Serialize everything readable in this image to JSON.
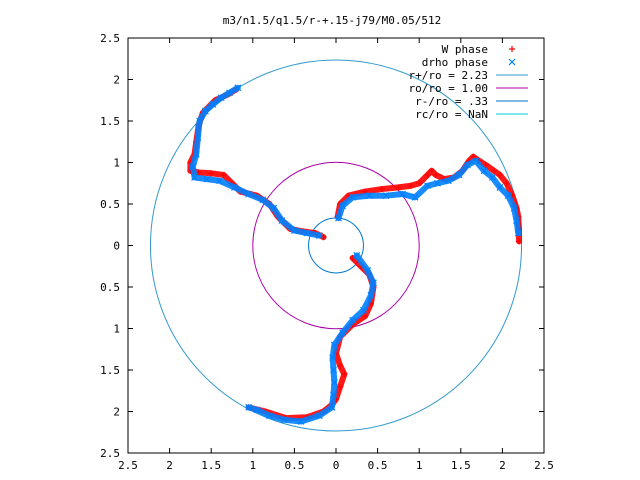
{
  "chart_data": {
    "type": "scatter",
    "title": "m3/n1.5/q1.5/r-+.15-j79/M0.05/512",
    "xlabel": "",
    "ylabel": "",
    "xlim": [
      -2.5,
      2.5
    ],
    "ylim": [
      -2.5,
      2.5
    ],
    "x_ticks": [
      -2.5,
      -2,
      -1.5,
      -1,
      -0.5,
      0,
      0.5,
      1,
      1.5,
      2,
      2.5
    ],
    "x_tick_labels": [
      "2.5",
      "2",
      "1.5",
      "1",
      "0.5",
      "0",
      "0.5",
      "1",
      "1.5",
      "2",
      "2.5"
    ],
    "y_ticks": [
      2.5,
      2,
      1.5,
      1,
      0.5,
      0,
      -0.5,
      -1,
      -1.5,
      -2,
      -2.5
    ],
    "y_tick_labels": [
      "2.5",
      "2",
      "1.5",
      "1",
      "0.5",
      "0",
      "0.5",
      "1",
      "1.5",
      "2",
      "2.5"
    ],
    "grid": false,
    "legend_position": "top-right",
    "series": [
      {
        "name": "W phase",
        "marker": "plus",
        "color": "#ff0000",
        "points": [
          [
            0.02,
            0.35
          ],
          [
            0.05,
            0.5
          ],
          [
            0.15,
            0.6
          ],
          [
            0.35,
            0.65
          ],
          [
            0.55,
            0.68
          ],
          [
            0.75,
            0.7
          ],
          [
            0.9,
            0.72
          ],
          [
            1.0,
            0.75
          ],
          [
            1.1,
            0.85
          ],
          [
            1.15,
            0.9
          ],
          [
            1.2,
            0.85
          ],
          [
            1.3,
            0.8
          ],
          [
            1.42,
            0.82
          ],
          [
            1.52,
            0.9
          ],
          [
            1.6,
            1.02
          ],
          [
            1.65,
            1.07
          ],
          [
            1.72,
            1.02
          ],
          [
            1.8,
            0.97
          ],
          [
            1.9,
            0.9
          ],
          [
            1.97,
            0.85
          ],
          [
            2.05,
            0.75
          ],
          [
            2.12,
            0.6
          ],
          [
            2.17,
            0.45
          ],
          [
            2.19,
            0.35
          ],
          [
            2.2,
            0.2
          ],
          [
            2.2,
            0.05
          ],
          [
            -0.15,
            0.1
          ],
          [
            -0.25,
            0.15
          ],
          [
            -0.4,
            0.17
          ],
          [
            -0.55,
            0.2
          ],
          [
            -0.7,
            0.35
          ],
          [
            -0.8,
            0.5
          ],
          [
            -0.95,
            0.6
          ],
          [
            -1.15,
            0.65
          ],
          [
            -1.25,
            0.75
          ],
          [
            -1.35,
            0.85
          ],
          [
            -1.5,
            0.87
          ],
          [
            -1.65,
            0.88
          ],
          [
            -1.75,
            0.9
          ],
          [
            -1.75,
            1.0
          ],
          [
            -1.7,
            1.1
          ],
          [
            -1.68,
            1.25
          ],
          [
            -1.65,
            1.45
          ],
          [
            -1.6,
            1.6
          ],
          [
            -1.45,
            1.75
          ],
          [
            -1.3,
            1.82
          ],
          [
            -1.2,
            1.88
          ],
          [
            0.2,
            -0.15
          ],
          [
            0.3,
            -0.25
          ],
          [
            0.4,
            -0.35
          ],
          [
            0.45,
            -0.5
          ],
          [
            0.42,
            -0.7
          ],
          [
            0.35,
            -0.85
          ],
          [
            0.2,
            -0.95
          ],
          [
            0.05,
            -1.1
          ],
          [
            0.0,
            -1.3
          ],
          [
            0.05,
            -1.45
          ],
          [
            0.1,
            -1.55
          ],
          [
            0.05,
            -1.7
          ],
          [
            0.0,
            -1.85
          ],
          [
            -0.05,
            -1.92
          ],
          [
            -0.15,
            -2.0
          ],
          [
            -0.35,
            -2.07
          ],
          [
            -0.6,
            -2.08
          ],
          [
            -0.85,
            -2.0
          ],
          [
            -1.05,
            -1.95
          ]
        ]
      },
      {
        "name": "drho phase",
        "marker": "cross",
        "color": "#0080ff",
        "points": [
          [
            0.03,
            0.33
          ],
          [
            0.08,
            0.48
          ],
          [
            0.2,
            0.58
          ],
          [
            0.4,
            0.6
          ],
          [
            0.6,
            0.6
          ],
          [
            0.8,
            0.62
          ],
          [
            0.95,
            0.58
          ],
          [
            1.1,
            0.72
          ],
          [
            1.22,
            0.75
          ],
          [
            1.35,
            0.78
          ],
          [
            1.48,
            0.85
          ],
          [
            1.58,
            0.97
          ],
          [
            1.68,
            1.02
          ],
          [
            1.78,
            0.9
          ],
          [
            1.88,
            0.82
          ],
          [
            1.97,
            0.7
          ],
          [
            2.07,
            0.6
          ],
          [
            2.14,
            0.45
          ],
          [
            2.17,
            0.3
          ],
          [
            2.19,
            0.15
          ],
          [
            -0.2,
            0.12
          ],
          [
            -0.35,
            0.15
          ],
          [
            -0.5,
            0.18
          ],
          [
            -0.65,
            0.3
          ],
          [
            -0.75,
            0.45
          ],
          [
            -0.88,
            0.55
          ],
          [
            -1.05,
            0.62
          ],
          [
            -1.22,
            0.7
          ],
          [
            -1.4,
            0.78
          ],
          [
            -1.55,
            0.8
          ],
          [
            -1.7,
            0.82
          ],
          [
            -1.72,
            0.95
          ],
          [
            -1.68,
            1.1
          ],
          [
            -1.66,
            1.3
          ],
          [
            -1.64,
            1.5
          ],
          [
            -1.57,
            1.62
          ],
          [
            -1.48,
            1.7
          ],
          [
            -1.38,
            1.78
          ],
          [
            -1.28,
            1.84
          ],
          [
            -1.18,
            1.9
          ],
          [
            0.25,
            -0.12
          ],
          [
            0.38,
            -0.3
          ],
          [
            0.45,
            -0.45
          ],
          [
            0.42,
            -0.6
          ],
          [
            0.33,
            -0.78
          ],
          [
            0.2,
            -0.9
          ],
          [
            0.08,
            -1.05
          ],
          [
            -0.02,
            -1.2
          ],
          [
            -0.04,
            -1.35
          ],
          [
            -0.03,
            -1.5
          ],
          [
            -0.02,
            -1.65
          ],
          [
            -0.03,
            -1.8
          ],
          [
            -0.05,
            -1.95
          ],
          [
            -0.2,
            -2.05
          ],
          [
            -0.42,
            -2.12
          ],
          [
            -0.62,
            -2.1
          ],
          [
            -0.8,
            -2.05
          ],
          [
            -0.95,
            -1.98
          ],
          [
            -1.05,
            -1.95
          ]
        ]
      },
      {
        "name": "r+/ro = 2.23",
        "type": "circle",
        "radius": 2.23,
        "color": "#3399cc"
      },
      {
        "name": "ro/ro = 1.00",
        "type": "circle",
        "radius": 1.0,
        "color": "#aa00aa"
      },
      {
        "name": "r-/ro = .33",
        "type": "circle",
        "radius": 0.33,
        "color": "#0077cc"
      },
      {
        "name": "rc/ro = NaN",
        "type": "circle",
        "radius": null,
        "color": "#00cccc"
      }
    ]
  }
}
